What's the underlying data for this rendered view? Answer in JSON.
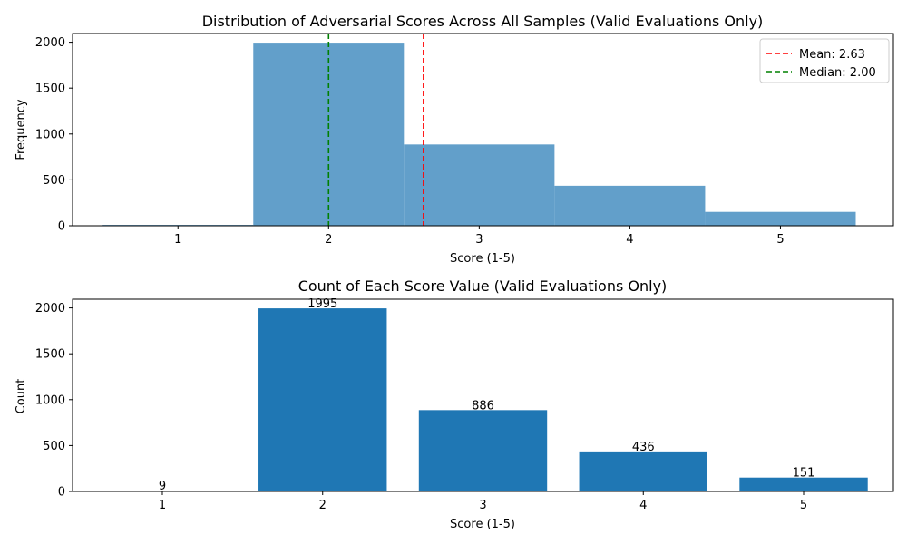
{
  "chart_data": [
    {
      "type": "bar",
      "title": "Distribution of Adversarial Scores Across All Samples (Valid Evaluations Only)",
      "xlabel": "Score (1-5)",
      "ylabel": "Frequency",
      "xlim": [
        0.3,
        5.75
      ],
      "ylim": [
        0,
        2094.75
      ],
      "xticks": [
        1,
        2,
        3,
        4,
        5
      ],
      "yticks": [
        0,
        500,
        1000,
        1500,
        2000
      ],
      "bins": [
        {
          "x0": 0.5,
          "x1": 1.5,
          "count": 9
        },
        {
          "x0": 1.5,
          "x1": 2.5,
          "count": 1995
        },
        {
          "x0": 2.5,
          "x1": 3.5,
          "count": 886
        },
        {
          "x0": 3.5,
          "x1": 4.5,
          "count": 436
        },
        {
          "x0": 4.5,
          "x1": 5.5,
          "count": 151
        }
      ],
      "bar_color": "#629fca",
      "vlines": [
        {
          "label": "Mean: 2.63",
          "x": 2.63,
          "color": "#ff0000"
        },
        {
          "label": "Median: 2.00",
          "x": 2.0,
          "color": "#008000"
        }
      ],
      "legend_position": "upper right"
    },
    {
      "type": "bar",
      "title": "Count of Each Score Value (Valid Evaluations Only)",
      "xlabel": "Score (1-5)",
      "ylabel": "Count",
      "xlim": [
        0.44,
        5.56
      ],
      "ylim": [
        0,
        2094.75
      ],
      "xticks": [
        1,
        2,
        3,
        4,
        5
      ],
      "yticks": [
        0,
        500,
        1000,
        1500,
        2000
      ],
      "categories": [
        1,
        2,
        3,
        4,
        5
      ],
      "values": [
        9,
        1995,
        886,
        436,
        151
      ],
      "data_labels": [
        "9",
        "1995",
        "886",
        "436",
        "151"
      ],
      "bar_color": "#1f77b4"
    }
  ]
}
